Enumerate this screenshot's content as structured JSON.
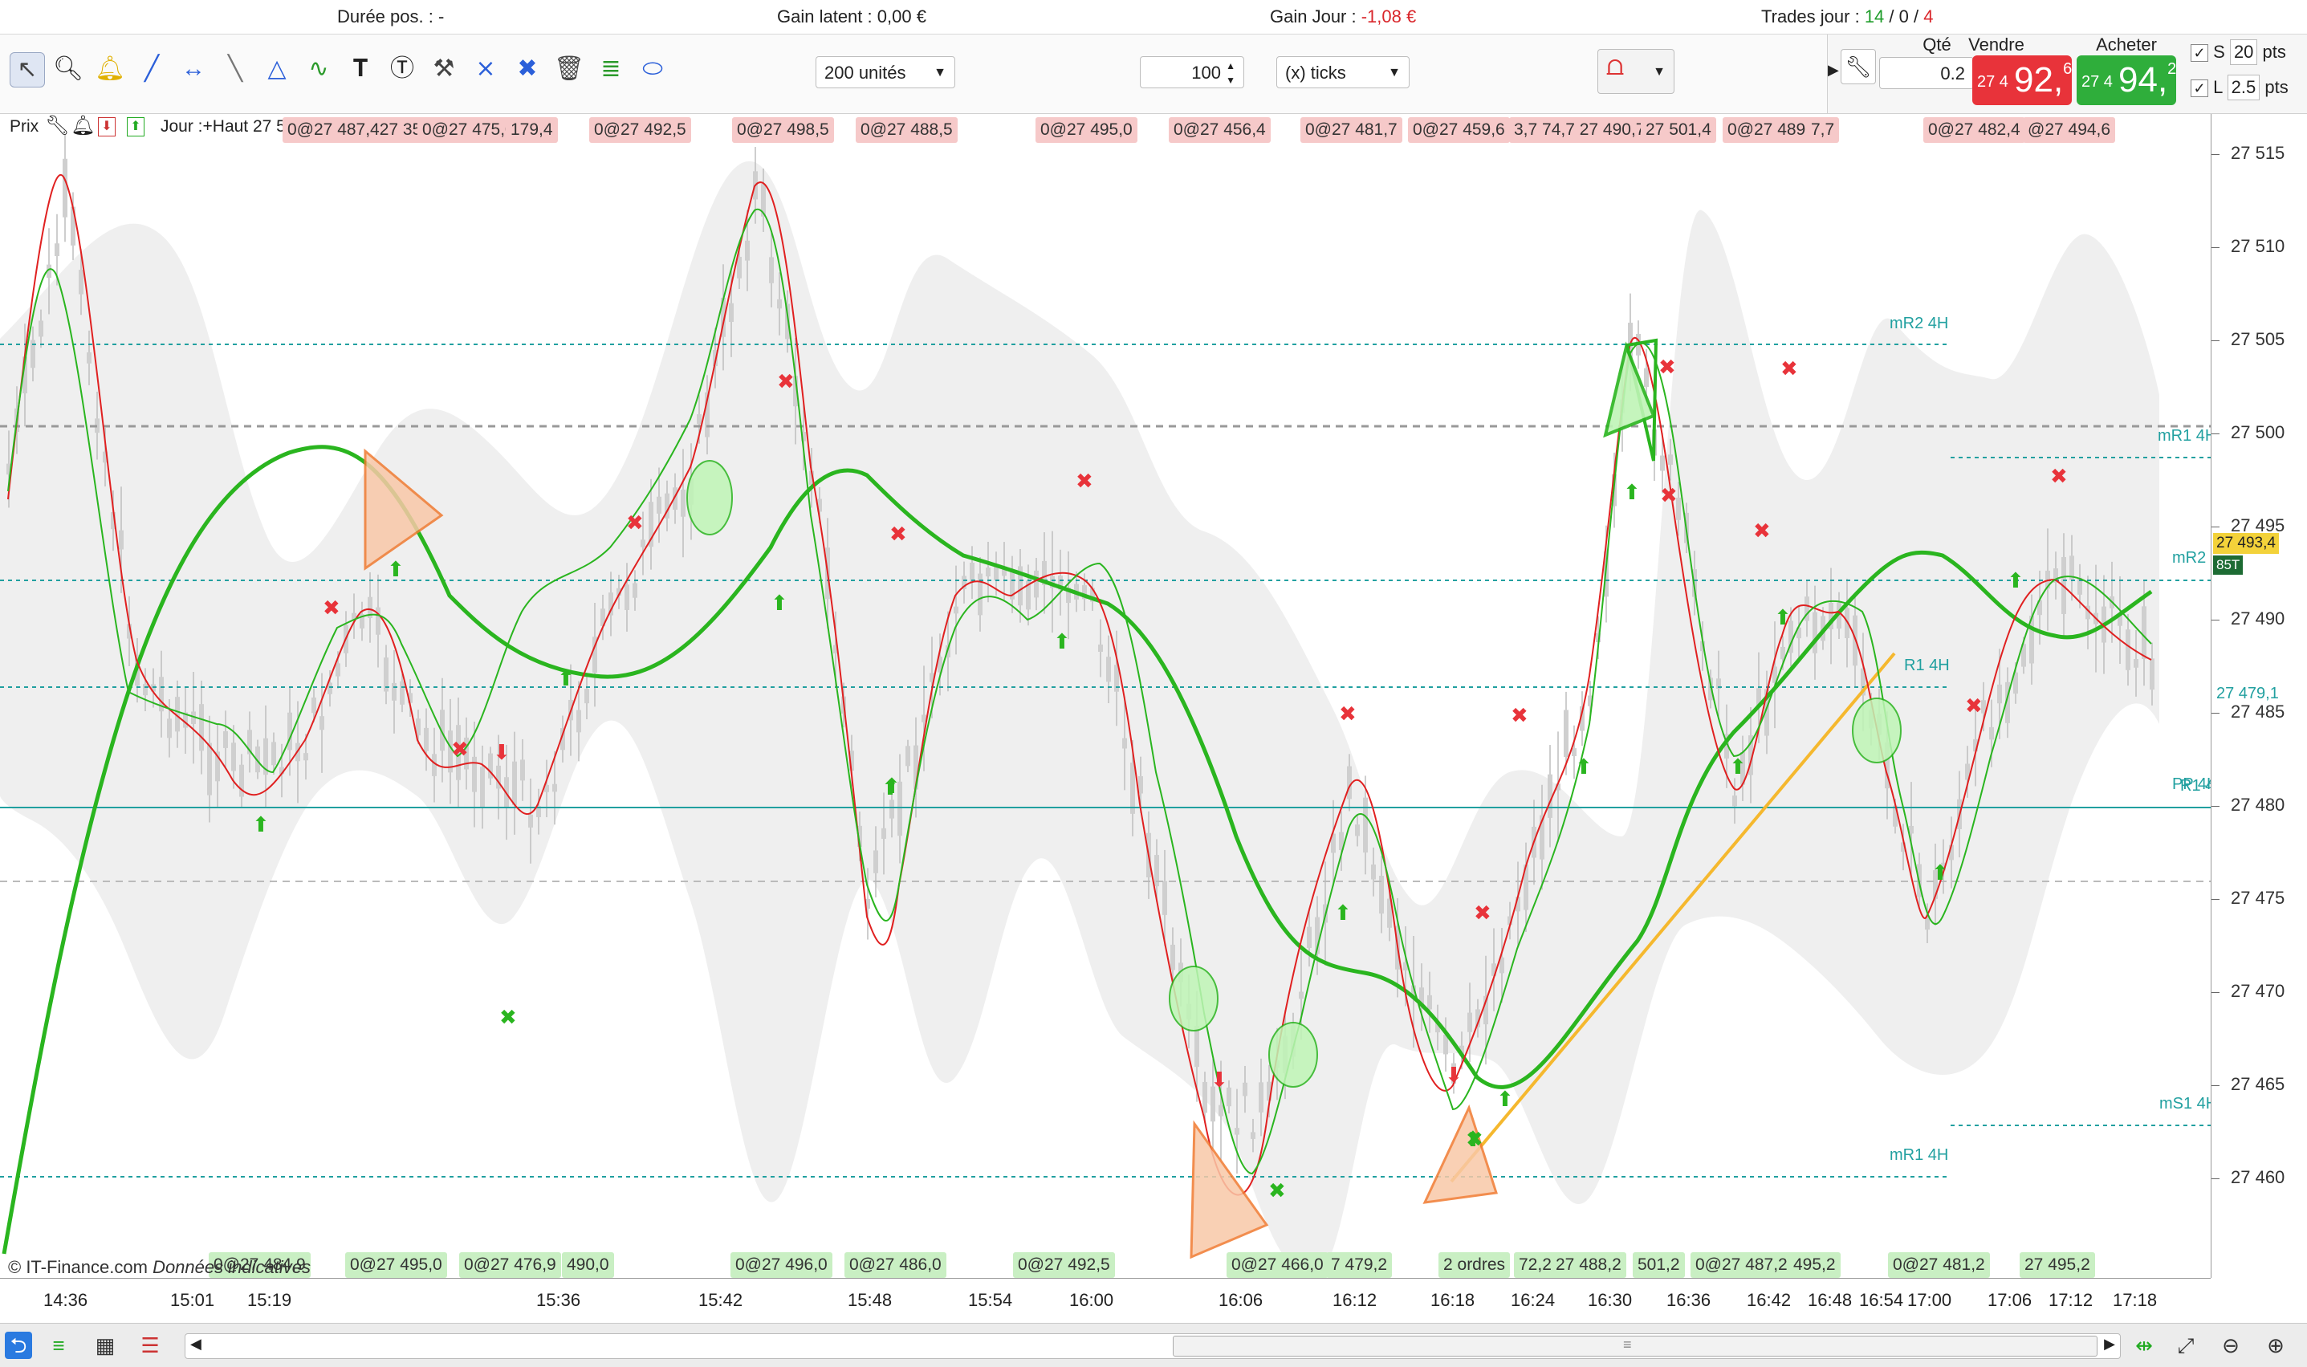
{
  "topbar": {
    "duree_label": "Durée pos. :",
    "duree_value": "-",
    "gain_latent_label": "Gain latent :",
    "gain_latent_value": "0,00 €",
    "gain_jour_label": "Gain Jour :",
    "gain_jour_value": "-1,08 €",
    "trades_label": "Trades jour :",
    "trades_win": "14",
    "trades_sep1": " / ",
    "trades_mid": "0",
    "trades_sep2": " / ",
    "trades_loss": "4"
  },
  "toolbar": {
    "units_select": "200 unités",
    "ticks_value": "100",
    "ticks_select": "(x) ticks",
    "tools": [
      "cursor-icon",
      "zoom-icon",
      "alert-bell-icon",
      "line-icon",
      "hline-icon",
      "ruler-icon",
      "fibonacci-icon",
      "wave-icon",
      "text-icon",
      "comment-icon",
      "tools-icon",
      "crossline-icon",
      "hand-move-icon",
      "trash-icon",
      "indicator-icon",
      "ellipse-icon"
    ]
  },
  "order_panel": {
    "qty_label": "Qté",
    "qty_value": "0.2",
    "sell_label": "Vendre",
    "sell_small": "27 4",
    "sell_big": "92,",
    "sell_sup": "6",
    "buy_label": "Acheter",
    "buy_small": "27 4",
    "buy_big": "94,",
    "buy_sup": "2",
    "stop_label": "S",
    "stop_value": "20",
    "stop_unit": "pts",
    "limit_label": "L",
    "limit_value": "2.5",
    "limit_unit": "pts"
  },
  "chart_header": {
    "prix_label": "Prix",
    "jour_text": "Jour :+Haut 27 5",
    "overlap_text": "0@27 487,427 350"
  },
  "top_trade_labels": [
    "0@27 475,0",
    "179,4",
    "0@27 492,5",
    "0@27 498,5",
    "0@27 488,5",
    "0@27 495,0",
    "0@27 456,4",
    "0@27 481,7",
    "0@27 459,6",
    "3,7 74,7 27 490,7",
    "27 501,4",
    "0@27 489,7",
    "7,7",
    "0@27 482,4",
    "@27 494,6"
  ],
  "bottom_trade_labels": [
    "0@27 484,9",
    "0@27 495,0",
    "0@27 476,9",
    "490,0",
    "0@27 496,0",
    "0@27 486,0",
    "0@27 492,5",
    "0@27 466,0",
    "7 479,2",
    "2 ordres",
    "72,2",
    "27 488,2",
    "501,2",
    "0@27 487,2",
    "495,2",
    "0@27 481,2",
    "27 495,2"
  ],
  "levels": {
    "mR2_4H": "mR2 4H",
    "mR1_4H_top": "mR1 4H",
    "mR2_J": "mR2 J",
    "R1_4H": "R1 4H",
    "PP_4H": "PP 4H",
    "R1_4H_b": "R1 4H",
    "mS1_4H": "mS1 4H",
    "mR1_4H_bottom": "mR1 4H"
  },
  "right_axis": {
    "ticks": [
      "27 515",
      "27 510",
      "27 505",
      "27 500",
      "27 495",
      "27 490",
      "27 485",
      "27 480",
      "27 475",
      "27 470",
      "27 465",
      "27 460"
    ],
    "current_price": "27 493,4",
    "current_sub": "85T",
    "pp_price": "27 479,1"
  },
  "x_axis": {
    "ticks": [
      "14:36",
      "15:01",
      "15:19",
      "15:36",
      "15:42",
      "15:48",
      "15:54",
      "16:00",
      "16:06",
      "16:12",
      "16:18",
      "16:24",
      "16:30",
      "16:36",
      "16:42",
      "16:48",
      "16:54",
      "17:00",
      "17:06",
      "17:12",
      "17:18"
    ]
  },
  "watermark": {
    "copyright": "© IT-Finance.com",
    "donnees": "Données indicatives"
  },
  "colors": {
    "sell_red": "#e8333a",
    "buy_green": "#2fae3b",
    "ma_red": "#e02020",
    "ma_green": "#2ab51f",
    "level_teal": "#21a0a0",
    "trend_orange": "#f5b82e"
  }
}
